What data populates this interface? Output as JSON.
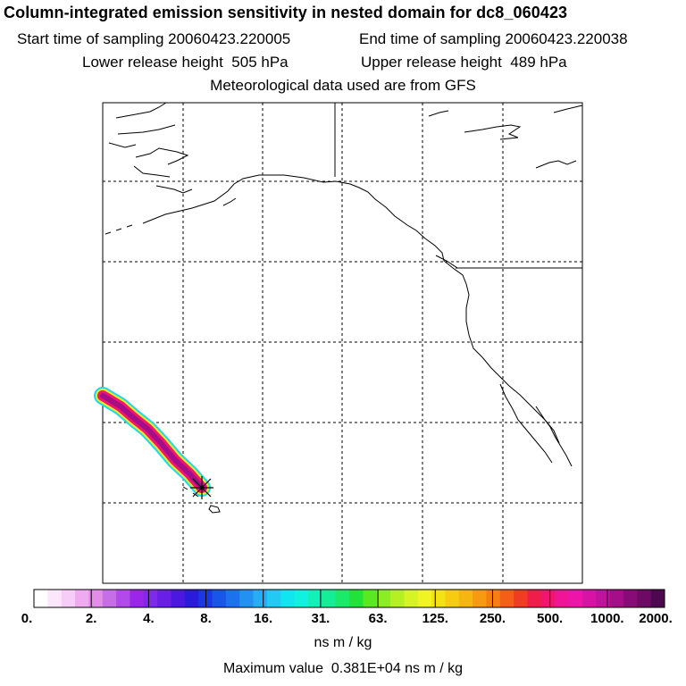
{
  "title": "Column-integrated emission sensitivity in nested domain for dc8_060423",
  "start_label": "Start time of sampling",
  "start_value": "20060423.220005",
  "end_label": "End time of sampling",
  "end_value": "20060423.220038",
  "lower_label": "Lower release height",
  "lower_value": "505 hPa",
  "upper_label": "Upper release height",
  "upper_value": "489 hPa",
  "met_text": "Meteorological data used are from GFS",
  "colorbar": {
    "ticks": [
      "0.",
      "2.",
      "4.",
      "8.",
      "16.",
      "31.",
      "63.",
      "125.",
      "250.",
      "500.",
      "1000.",
      "2000."
    ],
    "colors": [
      "#ffffff",
      "#fbe6fb",
      "#f7cdf7",
      "#f0aaf0",
      "#e28de8",
      "#c66ee6",
      "#b14ae8",
      "#9a26ea",
      "#7f2aea",
      "#6a1fe6",
      "#4a18e0",
      "#2a1adc",
      "#1838e6",
      "#1a55ea",
      "#1c72ee",
      "#2291f0",
      "#25aef3",
      "#22c9f2",
      "#10e6f0",
      "#10f2e0",
      "#12f2b8",
      "#14ee96",
      "#1aea6a",
      "#20e23a",
      "#5ae820",
      "#8cee22",
      "#b4f022",
      "#d6f424",
      "#f0f420",
      "#f4e212",
      "#f6cc10",
      "#f6b610",
      "#f69a10",
      "#f67e12",
      "#f45e18",
      "#f23c22",
      "#f01c4a",
      "#f01670",
      "#f21496",
      "#ee14aa",
      "#d812a4",
      "#c0129a",
      "#a40e88",
      "#880c78",
      "#6c0a66",
      "#4e0850"
    ],
    "units": "ns m / kg"
  },
  "max_label": "Maximum value",
  "max_value": "0.381E+04 ns m / kg"
}
